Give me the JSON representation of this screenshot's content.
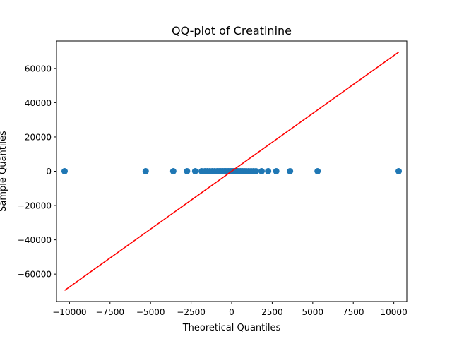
{
  "chart_data": {
    "type": "scatter",
    "title": "QQ-plot of Creatinine",
    "xlabel": "Theoretical Quantiles",
    "ylabel": "Sample Quantiles",
    "xlim": [
      -10800,
      10800
    ],
    "ylim": [
      -76000,
      76000
    ],
    "xticks": [
      -10000,
      -7500,
      -5000,
      -2500,
      0,
      2500,
      5000,
      7500,
      10000
    ],
    "xtick_labels": [
      "−10000",
      "−7500",
      "−5000",
      "−2500",
      "0",
      "2500",
      "5000",
      "7500",
      "10000"
    ],
    "yticks": [
      -60000,
      -40000,
      -20000,
      0,
      20000,
      40000,
      60000
    ],
    "ytick_labels": [
      "−60000",
      "−40000",
      "−20000",
      "0",
      "20000",
      "40000",
      "60000"
    ],
    "grid": false,
    "series": [
      {
        "kind": "points",
        "color": "#1f77b4",
        "x": [
          -10300,
          -5300,
          -3600,
          -2750,
          -2250,
          -1850,
          -1650,
          -1500,
          -1350,
          -1200,
          -1050,
          -900,
          -780,
          -660,
          -550,
          -450,
          -360,
          -270,
          -190,
          -110,
          -40,
          40,
          110,
          190,
          270,
          360,
          450,
          550,
          660,
          780,
          900,
          1050,
          1200,
          1350,
          1500,
          1850,
          2250,
          2750,
          3600,
          5300,
          10300
        ],
        "y": [
          0,
          0,
          0,
          0,
          0,
          0,
          0,
          0,
          0,
          0,
          0,
          0,
          0,
          0,
          0,
          0,
          0,
          0,
          0,
          0,
          0,
          0,
          0,
          0,
          0,
          0,
          0,
          0,
          0,
          0,
          0,
          0,
          0,
          0,
          0,
          0,
          0,
          0,
          0,
          0,
          0
        ]
      },
      {
        "kind": "line",
        "color": "#ff0000",
        "x": [
          -10300,
          10300
        ],
        "y": [
          -69500,
          69500
        ]
      }
    ]
  }
}
